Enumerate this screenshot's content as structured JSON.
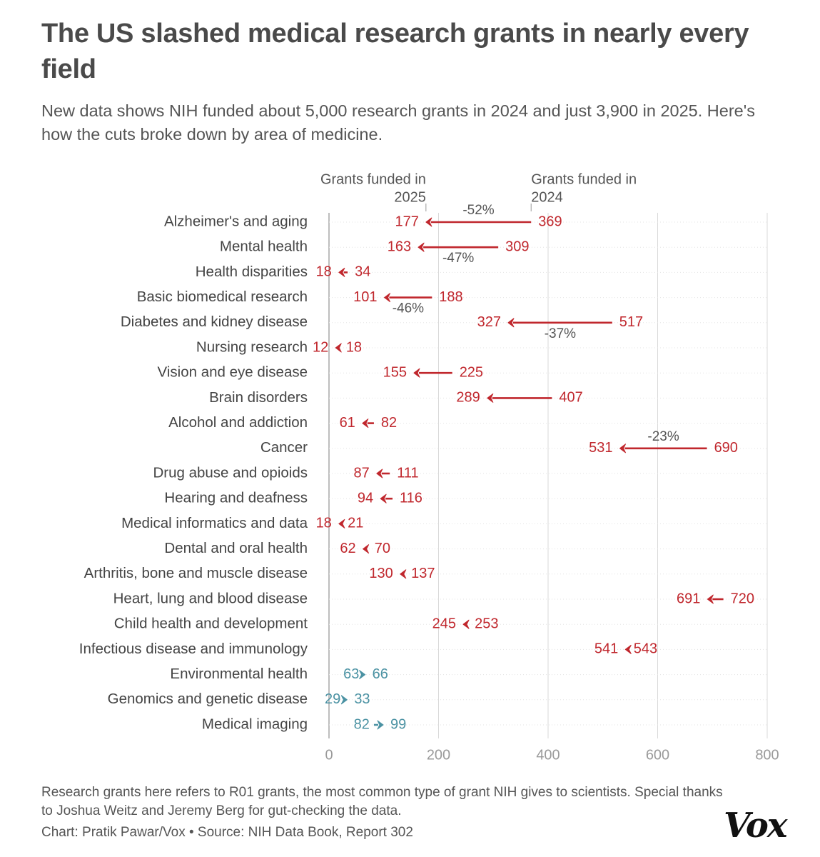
{
  "title": "The US slashed medical research grants in nearly every field",
  "subtitle": "New data shows NIH funded about 5,000 research grants in 2024 and just 3,900 in 2025. Here's how the cuts broke down by area of medicine.",
  "footnote": "Research grants here refers to R01 grants, the most common type of grant NIH gives to scientists. Special thanks to Joshua Weitz and Jeremy Berg for gut-checking the data.",
  "credit": "Chart: Pratik Pawar/Vox • Source: NIH Data Book, Report 302",
  "logo": "Vox",
  "colors": {
    "decrease": "#c0272d",
    "increase": "#4b92a3",
    "grid": "#d9d9d9",
    "label": "#444444",
    "annotation": "#555555"
  },
  "chart_data": {
    "type": "arrow-dot",
    "title": "The US slashed medical research grants in nearly every field",
    "xlabel": "",
    "ylabel": "",
    "xlim": [
      0,
      800
    ],
    "xticks": [
      0,
      200,
      400,
      600,
      800
    ],
    "grid": true,
    "header_labels": {
      "start": [
        "Grants funded in",
        "2025"
      ],
      "end": [
        "Grants funded in",
        "2024"
      ]
    },
    "rows": [
      {
        "label": "Alzheimer's and aging",
        "y2024": 369,
        "y2025": 177,
        "pct": "-52%"
      },
      {
        "label": "Mental health",
        "y2024": 309,
        "y2025": 163,
        "pct": "-47%"
      },
      {
        "label": "Health disparities",
        "y2024": 34,
        "y2025": 18
      },
      {
        "label": "Basic biomedical research",
        "y2024": 188,
        "y2025": 101,
        "pct": "-46%"
      },
      {
        "label": "Diabetes and kidney disease",
        "y2024": 517,
        "y2025": 327,
        "pct": "-37%"
      },
      {
        "label": "Nursing research",
        "y2024": 18,
        "y2025": 12
      },
      {
        "label": "Vision and eye disease",
        "y2024": 225,
        "y2025": 155
      },
      {
        "label": "Brain disorders",
        "y2024": 407,
        "y2025": 289
      },
      {
        "label": "Alcohol and addiction",
        "y2024": 82,
        "y2025": 61
      },
      {
        "label": "Cancer",
        "y2024": 690,
        "y2025": 531,
        "pct": "-23%"
      },
      {
        "label": "Drug abuse and opioids",
        "y2024": 111,
        "y2025": 87
      },
      {
        "label": "Hearing and deafness",
        "y2024": 116,
        "y2025": 94
      },
      {
        "label": "Medical informatics and data",
        "y2024": 21,
        "y2025": 18
      },
      {
        "label": "Dental and oral health",
        "y2024": 70,
        "y2025": 62
      },
      {
        "label": "Arthritis, bone and muscle disease",
        "y2024": 137,
        "y2025": 130
      },
      {
        "label": "Heart, lung and blood disease",
        "y2024": 720,
        "y2025": 691
      },
      {
        "label": "Child health and development",
        "y2024": 253,
        "y2025": 245
      },
      {
        "label": "Infectious disease and immunology",
        "y2024": 543,
        "y2025": 541
      },
      {
        "label": "Environmental health",
        "y2024": 63,
        "y2025": 66
      },
      {
        "label": "Genomics and genetic disease",
        "y2024": 29,
        "y2025": 33
      },
      {
        "label": "Medical imaging",
        "y2024": 82,
        "y2025": 99
      }
    ]
  }
}
